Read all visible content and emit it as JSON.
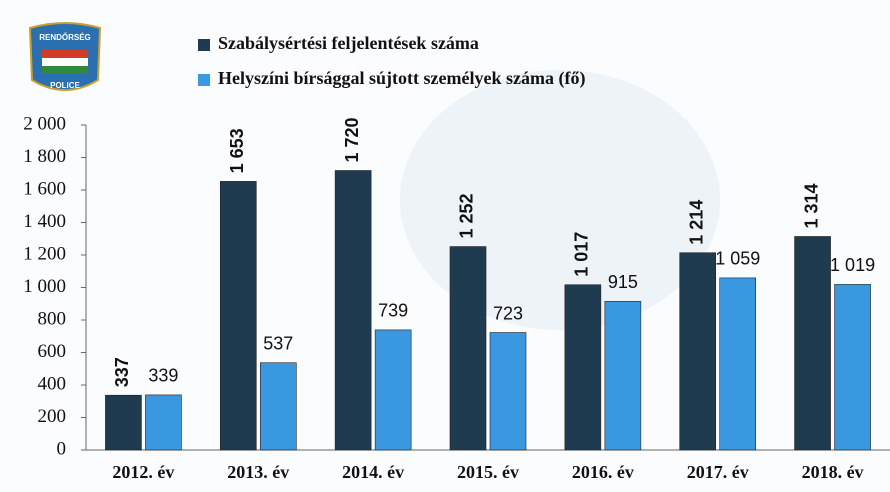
{
  "logo": {
    "top": "RENDŐRSÉG",
    "bottom": "POLICE"
  },
  "chart_data": {
    "type": "bar",
    "categories": [
      "2012. év",
      "2013. év",
      "2014. év",
      "2015. év",
      "2016. év",
      "2017. év",
      "2018. év"
    ],
    "series": [
      {
        "name": "Szabálysértési feljelentések száma",
        "color": "#1e3b4f",
        "values": [
          337,
          1653,
          1720,
          1252,
          1017,
          1214,
          1314
        ],
        "value_labels": [
          "337",
          "1 653",
          "1 720",
          "1 252",
          "1 017",
          "1 214",
          "1 314"
        ]
      },
      {
        "name": "Helyszíni bírsággal sújtott személyek száma (fő)",
        "color": "#3a98e0",
        "values": [
          339,
          537,
          739,
          723,
          915,
          1059,
          1019
        ],
        "value_labels": [
          "339",
          "537",
          "739",
          "723",
          "915",
          "1 059",
          "1 019"
        ]
      }
    ],
    "ylim": [
      0,
      2000
    ],
    "yticks": [
      0,
      200,
      400,
      600,
      800,
      {
        "value": 1000,
        "label": "1 000"
      },
      {
        "value": 1200,
        "label": "1 200"
      },
      {
        "value": 1400,
        "label": "1 400"
      },
      {
        "value": 1600,
        "label": "1 600"
      },
      {
        "value": 1800,
        "label": "1 800"
      },
      {
        "value": 2000,
        "label": "2 000"
      }
    ]
  }
}
